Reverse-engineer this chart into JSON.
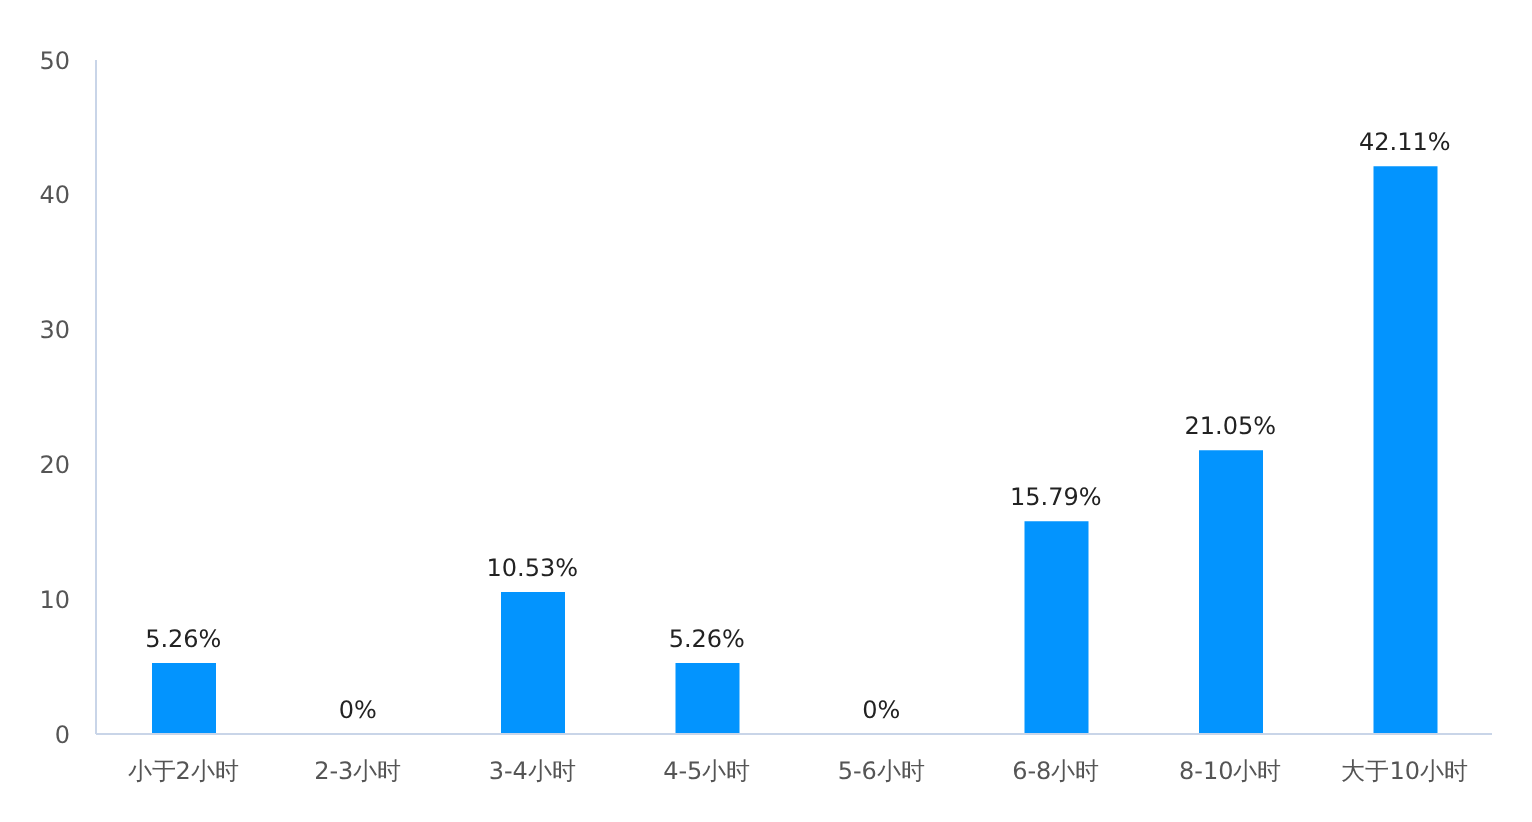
{
  "chart_data": {
    "type": "bar",
    "categories": [
      "小于2小时",
      "2-3小时",
      "3-4小时",
      "4-5小时",
      "5-6小时",
      "6-8小时",
      "8-10小时",
      "大于10小时"
    ],
    "values": [
      5.26,
      0,
      10.53,
      5.26,
      0,
      15.79,
      21.05,
      42.11
    ],
    "value_labels": [
      "5.26%",
      "0%",
      "10.53%",
      "5.26%",
      "0%",
      "15.79%",
      "21.05%",
      "42.11%"
    ],
    "color": "#0394fe",
    "ylim": [
      0,
      50
    ],
    "yticks": [
      0,
      10,
      20,
      30,
      40,
      50
    ]
  }
}
